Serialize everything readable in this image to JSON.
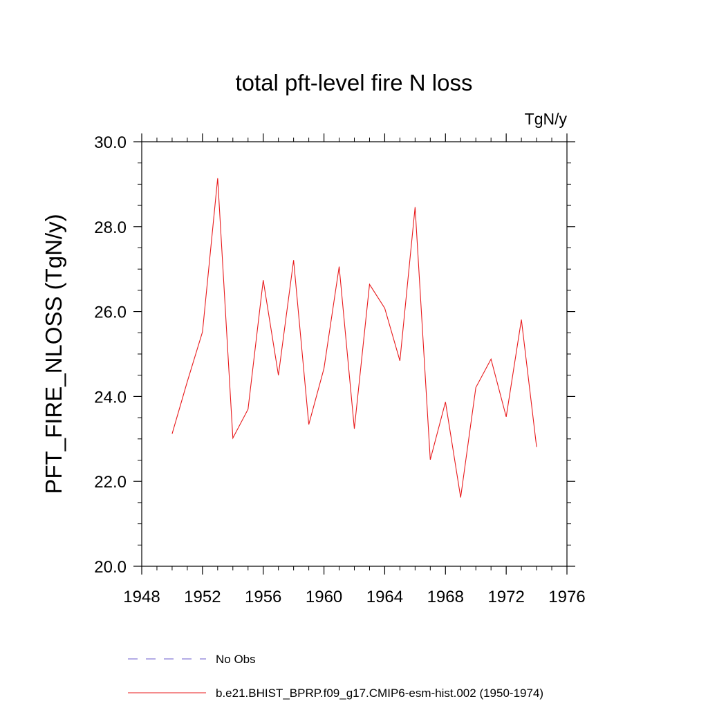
{
  "chart_data": {
    "type": "line",
    "title": "total pft-level fire N loss",
    "units_label": "TgN/y",
    "ylabel": "PFT_FIRE_NLOSS  (TgN/y)",
    "xlabel": "",
    "xlim": [
      1948,
      1976
    ],
    "ylim": [
      20.0,
      30.0
    ],
    "x_ticks": [
      1948,
      1952,
      1956,
      1960,
      1964,
      1968,
      1972,
      1976
    ],
    "x_tick_labels": [
      "1948",
      "1952",
      "1956",
      "1960",
      "1964",
      "1968",
      "1972",
      "1976"
    ],
    "y_ticks": [
      20.0,
      22.0,
      24.0,
      26.0,
      28.0,
      30.0
    ],
    "y_tick_labels": [
      "20.0",
      "22.0",
      "24.0",
      "26.0",
      "28.0",
      "30.0"
    ],
    "grid": false,
    "legend_position": "bottom",
    "series": [
      {
        "name": "No Obs",
        "color": "#6a5acd",
        "dash": "dashed",
        "x": [],
        "y": []
      },
      {
        "name": "b.e21.BHIST_BPRP.f09_g17.CMIP6-esm-hist.002 (1950-1974)",
        "color": "#e8191b",
        "dash": "solid",
        "x": [
          1950,
          1951,
          1952,
          1953,
          1954,
          1955,
          1956,
          1957,
          1958,
          1959,
          1960,
          1961,
          1962,
          1963,
          1964,
          1965,
          1966,
          1967,
          1968,
          1969,
          1970,
          1971,
          1972,
          1973,
          1974
        ],
        "y": [
          23.12,
          24.35,
          25.52,
          29.14,
          23.02,
          23.7,
          26.74,
          24.5,
          27.21,
          23.34,
          24.66,
          27.06,
          23.24,
          26.64,
          26.08,
          24.84,
          28.46,
          22.51,
          23.87,
          21.62,
          24.21,
          24.88,
          23.52,
          25.81,
          22.81
        ]
      }
    ]
  }
}
